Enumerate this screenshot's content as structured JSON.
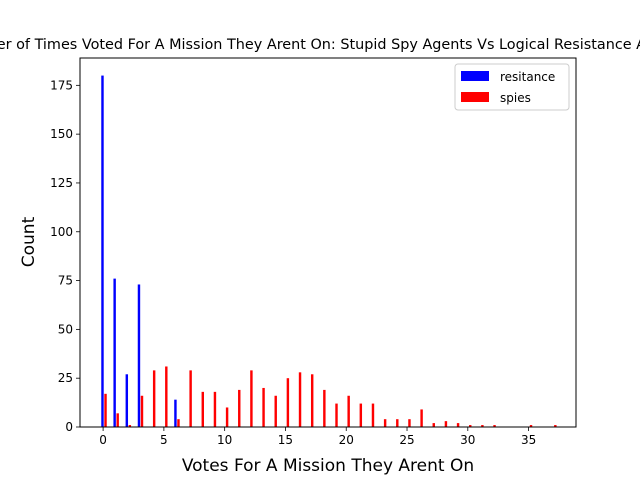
{
  "chart_data": {
    "type": "bar",
    "title": "Number of Times Voted For A Mission They Arent On: Stupid Spy Agents Vs Logical Resistance Agents",
    "xlabel": "Votes For A Mission They Arent On",
    "ylabel": "Count",
    "xlim": [
      -1.9,
      38.9
    ],
    "ylim": [
      0,
      189
    ],
    "xticks": [
      0,
      5,
      10,
      15,
      20,
      25,
      30,
      35
    ],
    "yticks": [
      0,
      25,
      50,
      75,
      100,
      125,
      150,
      175
    ],
    "legend": "top-right",
    "grid": false,
    "series": [
      {
        "name": "resitance",
        "color": "#0000ff",
        "points": [
          [
            0,
            180
          ],
          [
            1,
            76
          ],
          [
            2,
            27
          ],
          [
            3,
            73
          ],
          [
            6,
            14
          ]
        ]
      },
      {
        "name": "spies",
        "color": "#ff0000",
        "points": [
          [
            0,
            17
          ],
          [
            1,
            7
          ],
          [
            2,
            1
          ],
          [
            3,
            16
          ],
          [
            4,
            29
          ],
          [
            5,
            31
          ],
          [
            6,
            4
          ],
          [
            7,
            29
          ],
          [
            8,
            18
          ],
          [
            9,
            18
          ],
          [
            10,
            10
          ],
          [
            11,
            19
          ],
          [
            12,
            29
          ],
          [
            13,
            20
          ],
          [
            14,
            16
          ],
          [
            15,
            25
          ],
          [
            16,
            28
          ],
          [
            17,
            27
          ],
          [
            18,
            19
          ],
          [
            19,
            12
          ],
          [
            20,
            16
          ],
          [
            21,
            12
          ],
          [
            22,
            12
          ],
          [
            23,
            4
          ],
          [
            24,
            4
          ],
          [
            25,
            4
          ],
          [
            26,
            9
          ],
          [
            27,
            2
          ],
          [
            28,
            3
          ],
          [
            29,
            2
          ],
          [
            30,
            1
          ],
          [
            31,
            1
          ],
          [
            32,
            1
          ],
          [
            35,
            1
          ],
          [
            37,
            1
          ]
        ]
      }
    ]
  }
}
